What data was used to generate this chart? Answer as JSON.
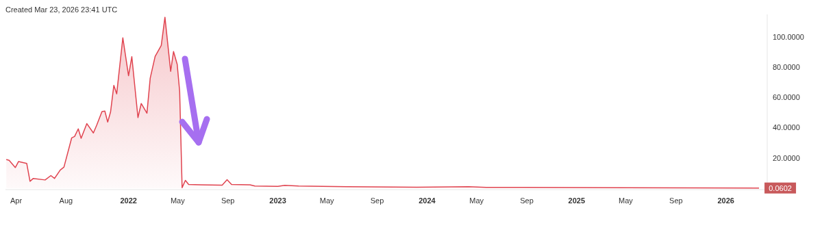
{
  "chart_data": {
    "type": "area",
    "annotations": [
      "Created Mar 23, 2026 23:41 UTC",
      {
        "text": "0.0602",
        "x": "2026-03-23",
        "y": 0.0602
      }
    ],
    "x": [
      "2021-03-08",
      "2021-03-15",
      "2021-03-30",
      "2021-04-07",
      "2021-04-27",
      "2021-05-05",
      "2021-05-13",
      "2021-06-11",
      "2021-06-25",
      "2021-07-04",
      "2021-07-18",
      "2021-07-27",
      "2021-08-15",
      "2021-08-22",
      "2021-08-31",
      "2021-09-07",
      "2021-09-21",
      "2021-10-07",
      "2021-10-15",
      "2021-10-28",
      "2021-11-04",
      "2021-11-11",
      "2021-11-18",
      "2021-11-26",
      "2021-12-03",
      "2021-12-18",
      "2022-01-01",
      "2022-01-09",
      "2022-01-24",
      "2022-02-01",
      "2022-02-15",
      "2022-02-23",
      "2022-03-07",
      "2022-03-22",
      "2022-03-31",
      "2022-04-14",
      "2022-04-21",
      "2022-04-30",
      "2022-05-06",
      "2022-05-12",
      "2022-05-20",
      "2022-05-28",
      "2022-06-28",
      "2022-08-18",
      "2022-08-30",
      "2022-09-10",
      "2022-10-25",
      "2022-11-06",
      "2023-01-01",
      "2023-01-18",
      "2023-02-21",
      "2023-06-20",
      "2023-12-07",
      "2024-04-12",
      "2024-05-25",
      "2025-01-01",
      "2025-04-30",
      "2025-10-16",
      "2026-03-23"
    ],
    "series": [
      {
        "color": "#e0434f",
        "values": [
          18.9,
          18.4,
          13.6,
          17.6,
          16.3,
          4.5,
          6.4,
          5.4,
          8.3,
          6.4,
          12,
          13.9,
          33.3,
          34.2,
          39.2,
          33,
          42.7,
          36.5,
          41.6,
          50.7,
          51,
          43.7,
          50.4,
          68,
          62.4,
          99.5,
          74.4,
          87,
          46.7,
          56,
          49.6,
          72.8,
          87.2,
          94.4,
          113.1,
          77.3,
          90.4,
          81.9,
          64,
          0.3,
          5.1,
          2.4,
          2.2,
          2.0,
          5.6,
          2.4,
          2.2,
          1.4,
          1.1,
          1.8,
          1.4,
          0.9,
          0.6,
          0.9,
          0.5,
          0.4,
          0.25,
          0.15,
          0.0602
        ]
      }
    ],
    "xlim": [
      "2021-03-06",
      "2026-04-12"
    ],
    "xticks": [
      {
        "value": "2021-04-01",
        "label": "Apr"
      },
      {
        "value": "2021-08-01",
        "label": "Aug"
      },
      {
        "value": "2022-01-01",
        "label": "2022"
      },
      {
        "value": "2022-05-01",
        "label": "May"
      },
      {
        "value": "2022-09-01",
        "label": "Sep"
      },
      {
        "value": "2023-01-01",
        "label": "2023"
      },
      {
        "value": "2023-05-01",
        "label": "May"
      },
      {
        "value": "2023-09-01",
        "label": "Sep"
      },
      {
        "value": "2024-01-01",
        "label": "2024"
      },
      {
        "value": "2024-05-01",
        "label": "May"
      },
      {
        "value": "2024-09-01",
        "label": "Sep"
      },
      {
        "value": "2025-01-01",
        "label": "2025"
      },
      {
        "value": "2025-05-01",
        "label": "May"
      },
      {
        "value": "2025-09-01",
        "label": "Sep"
      },
      {
        "value": "2026-01-01",
        "label": "2026"
      }
    ],
    "ylim": [
      -1,
      115
    ],
    "yticks": [
      {
        "value": 20,
        "label": "20.0000"
      },
      {
        "value": 40,
        "label": "40.0000"
      },
      {
        "value": 60,
        "label": "60.0000"
      },
      {
        "value": 80,
        "label": "80.0000"
      },
      {
        "value": 100,
        "label": "100.0000"
      }
    ],
    "grid": false,
    "legend": false
  }
}
